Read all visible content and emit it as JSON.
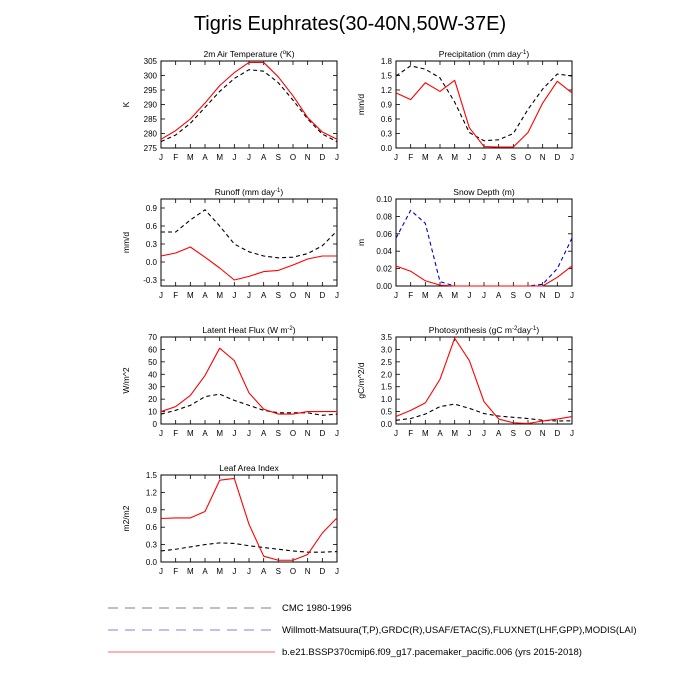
{
  "figure": {
    "title": "Tigris Euphrates(30-40N,50W-37E)"
  },
  "months": [
    "J",
    "F",
    "M",
    "A",
    "M",
    "J",
    "J",
    "A",
    "S",
    "O",
    "N",
    "D",
    "J"
  ],
  "legend": [
    {
      "label": "CMC 1980-1996",
      "color": "#808080",
      "style": "dashed"
    },
    {
      "label": "Willmott-Matsuura(T,P),GRDC(R),USAF/ETAC(S),FLUXNET(LHF,GPP),MODIS(LAI)",
      "color": "#8080e0",
      "style": "dashed"
    },
    {
      "label": "b.e21.BSSP370cmip6.f09_g17.pacemaker_pacific.006 (yrs 2015-2018)",
      "color": "#ff3333",
      "style": "solid"
    }
  ],
  "chart_data": [
    {
      "type": "line",
      "title_main": "2m Air Temperature (",
      "title_sup": "o",
      "title_end": "K)",
      "ylabel": "K",
      "ylim": [
        275,
        305
      ],
      "yticks": [
        "275",
        "280",
        "285",
        "290",
        "295",
        "300",
        "305"
      ],
      "yticks_values": [
        275,
        280,
        285,
        290,
        295,
        300,
        305
      ],
      "x": [
        "J",
        "F",
        "M",
        "A",
        "M",
        "J",
        "J",
        "A",
        "S",
        "O",
        "N",
        "D",
        "J"
      ],
      "series": [
        {
          "role": "observed",
          "color": "#000000",
          "style": "dashed",
          "values": [
            277.2,
            279.5,
            283.5,
            289,
            294.5,
            299,
            302,
            301.5,
            297.5,
            291.5,
            285,
            279.8,
            277.2
          ]
        },
        {
          "role": "model",
          "color": "#ff0000",
          "style": "solid",
          "values": [
            278,
            281,
            285,
            290.5,
            296.5,
            301,
            304.5,
            304.5,
            299.5,
            293,
            285.5,
            280.5,
            278
          ]
        }
      ]
    },
    {
      "type": "line",
      "title_main": "Precipitation (mm day",
      "title_sup": "-1",
      "title_end": ")",
      "ylabel": "mm/d",
      "ylim": [
        0,
        1.8
      ],
      "yticks": [
        "0.0",
        "0.3",
        "0.6",
        "0.9",
        "1.2",
        "1.5",
        "1.8"
      ],
      "yticks_values": [
        0,
        0.3,
        0.6,
        0.9,
        1.2,
        1.5,
        1.8
      ],
      "x": [
        "J",
        "F",
        "M",
        "A",
        "M",
        "J",
        "J",
        "A",
        "S",
        "O",
        "N",
        "D",
        "J"
      ],
      "series": [
        {
          "role": "observed",
          "color": "#000000",
          "style": "dashed",
          "values": [
            1.49,
            1.7,
            1.63,
            1.45,
            0.95,
            0.32,
            0.15,
            0.17,
            0.3,
            0.8,
            1.22,
            1.53,
            1.49
          ]
        },
        {
          "role": "model",
          "color": "#ff0000",
          "style": "solid",
          "values": [
            1.14,
            1.0,
            1.35,
            1.17,
            1.4,
            0.42,
            0.03,
            0.02,
            0.02,
            0.32,
            0.93,
            1.38,
            1.14
          ]
        }
      ]
    },
    {
      "type": "line",
      "title_main": "Runoff (mm day",
      "title_sup": "-1",
      "title_end": ")",
      "ylabel": "mm/d",
      "ylim": [
        -0.4,
        1.05
      ],
      "yticks": [
        "-0.3",
        "0.0",
        "0.3",
        "0.6",
        "0.9"
      ],
      "yticks_values": [
        -0.3,
        0,
        0.3,
        0.6,
        0.9
      ],
      "x": [
        "J",
        "F",
        "M",
        "A",
        "M",
        "J",
        "J",
        "A",
        "S",
        "O",
        "N",
        "D",
        "J"
      ],
      "series": [
        {
          "role": "observed",
          "color": "#000000",
          "style": "dashed",
          "values": [
            0.5,
            0.5,
            0.7,
            0.87,
            0.6,
            0.3,
            0.17,
            0.1,
            0.07,
            0.08,
            0.14,
            0.27,
            0.52
          ]
        },
        {
          "role": "model",
          "color": "#ff0000",
          "style": "solid",
          "values": [
            0.1,
            0.15,
            0.25,
            0.08,
            -0.1,
            -0.3,
            -0.24,
            -0.16,
            -0.14,
            -0.05,
            0.05,
            0.1,
            0.1
          ]
        }
      ]
    },
    {
      "type": "line",
      "title_main": "Snow Depth (m)",
      "title_sup": "",
      "title_end": "",
      "ylabel": "m",
      "ylim": [
        0,
        0.1
      ],
      "yticks": [
        "0.00",
        "0.02",
        "0.04",
        "0.06",
        "0.08",
        "0.10"
      ],
      "yticks_values": [
        0,
        0.02,
        0.04,
        0.06,
        0.08,
        0.1
      ],
      "x": [
        "J",
        "F",
        "M",
        "A",
        "M",
        "J",
        "J",
        "A",
        "S",
        "O",
        "N",
        "D",
        "J"
      ],
      "series": [
        {
          "role": "observed",
          "color": "#0000cc",
          "style": "dashed",
          "values": [
            0.055,
            0.087,
            0.072,
            0.005,
            0,
            0,
            0,
            0,
            0,
            0,
            0.002,
            0.02,
            0.055
          ]
        },
        {
          "role": "model",
          "color": "#ff0000",
          "style": "solid",
          "values": [
            0.023,
            0.017,
            0.006,
            0.001,
            0,
            0,
            0,
            0,
            0,
            0,
            0,
            0.01,
            0.023
          ]
        }
      ]
    },
    {
      "type": "line",
      "title_main": "Latent Heat Flux (W m",
      "title_sup": "-2",
      "title_end": ")",
      "ylabel": "W/m^2",
      "ylim": [
        0,
        70
      ],
      "yticks": [
        "0",
        "10",
        "20",
        "30",
        "40",
        "50",
        "60",
        "70"
      ],
      "yticks_values": [
        0,
        10,
        20,
        30,
        40,
        50,
        60,
        70
      ],
      "x": [
        "J",
        "F",
        "M",
        "A",
        "M",
        "J",
        "J",
        "A",
        "S",
        "O",
        "N",
        "D",
        "J"
      ],
      "series": [
        {
          "role": "observed",
          "color": "#000000",
          "style": "dashed",
          "values": [
            8,
            11,
            15,
            22,
            24,
            19,
            15,
            11,
            9,
            9,
            9,
            7,
            8
          ]
        },
        {
          "role": "model",
          "color": "#ff0000",
          "style": "solid",
          "values": [
            10,
            14,
            23,
            39,
            61,
            51,
            25,
            12,
            8,
            8,
            10,
            10,
            10
          ]
        }
      ]
    },
    {
      "type": "line",
      "title_main": "Photosynthesis (gC m",
      "title_sup": "-2",
      "title_mid": "day",
      "title_sup2": "-1",
      "title_end": ")",
      "ylabel": "gC/m^2/d",
      "ylim": [
        0,
        3.5
      ],
      "yticks": [
        "0.0",
        "0.5",
        "1.0",
        "1.5",
        "2.0",
        "2.5",
        "3.0",
        "3.5"
      ],
      "yticks_values": [
        0,
        0.5,
        1,
        1.5,
        2,
        2.5,
        3,
        3.5
      ],
      "x": [
        "J",
        "F",
        "M",
        "A",
        "M",
        "J",
        "J",
        "A",
        "S",
        "O",
        "N",
        "D",
        "J"
      ],
      "series": [
        {
          "role": "observed",
          "color": "#000000",
          "style": "dashed",
          "values": [
            0.15,
            0.22,
            0.4,
            0.7,
            0.8,
            0.63,
            0.42,
            0.32,
            0.27,
            0.22,
            0.15,
            0.12,
            0.13
          ]
        },
        {
          "role": "model",
          "color": "#ff0000",
          "style": "solid",
          "values": [
            0.3,
            0.55,
            0.85,
            1.8,
            3.45,
            2.55,
            0.9,
            0.2,
            0.05,
            0.02,
            0.12,
            0.2,
            0.3
          ]
        }
      ]
    },
    {
      "type": "line",
      "title_main": "Leaf Area Index",
      "title_sup": "",
      "title_end": "",
      "ylabel": "m2/m2",
      "ylim": [
        0,
        1.5
      ],
      "yticks": [
        "0.0",
        "0.3",
        "0.6",
        "0.9",
        "1.2",
        "1.5"
      ],
      "yticks_values": [
        0,
        0.3,
        0.6,
        0.9,
        1.2,
        1.5
      ],
      "x": [
        "J",
        "F",
        "M",
        "A",
        "M",
        "J",
        "J",
        "A",
        "S",
        "O",
        "N",
        "D",
        "J"
      ],
      "series": [
        {
          "role": "observed",
          "color": "#000000",
          "style": "dashed",
          "values": [
            0.19,
            0.22,
            0.26,
            0.3,
            0.33,
            0.32,
            0.28,
            0.25,
            0.22,
            0.19,
            0.17,
            0.17,
            0.18
          ]
        },
        {
          "role": "model",
          "color": "#ff0000",
          "style": "solid",
          "values": [
            0.75,
            0.76,
            0.76,
            0.87,
            1.41,
            1.44,
            0.65,
            0.1,
            0.03,
            0.03,
            0.13,
            0.5,
            0.76
          ]
        }
      ]
    }
  ]
}
